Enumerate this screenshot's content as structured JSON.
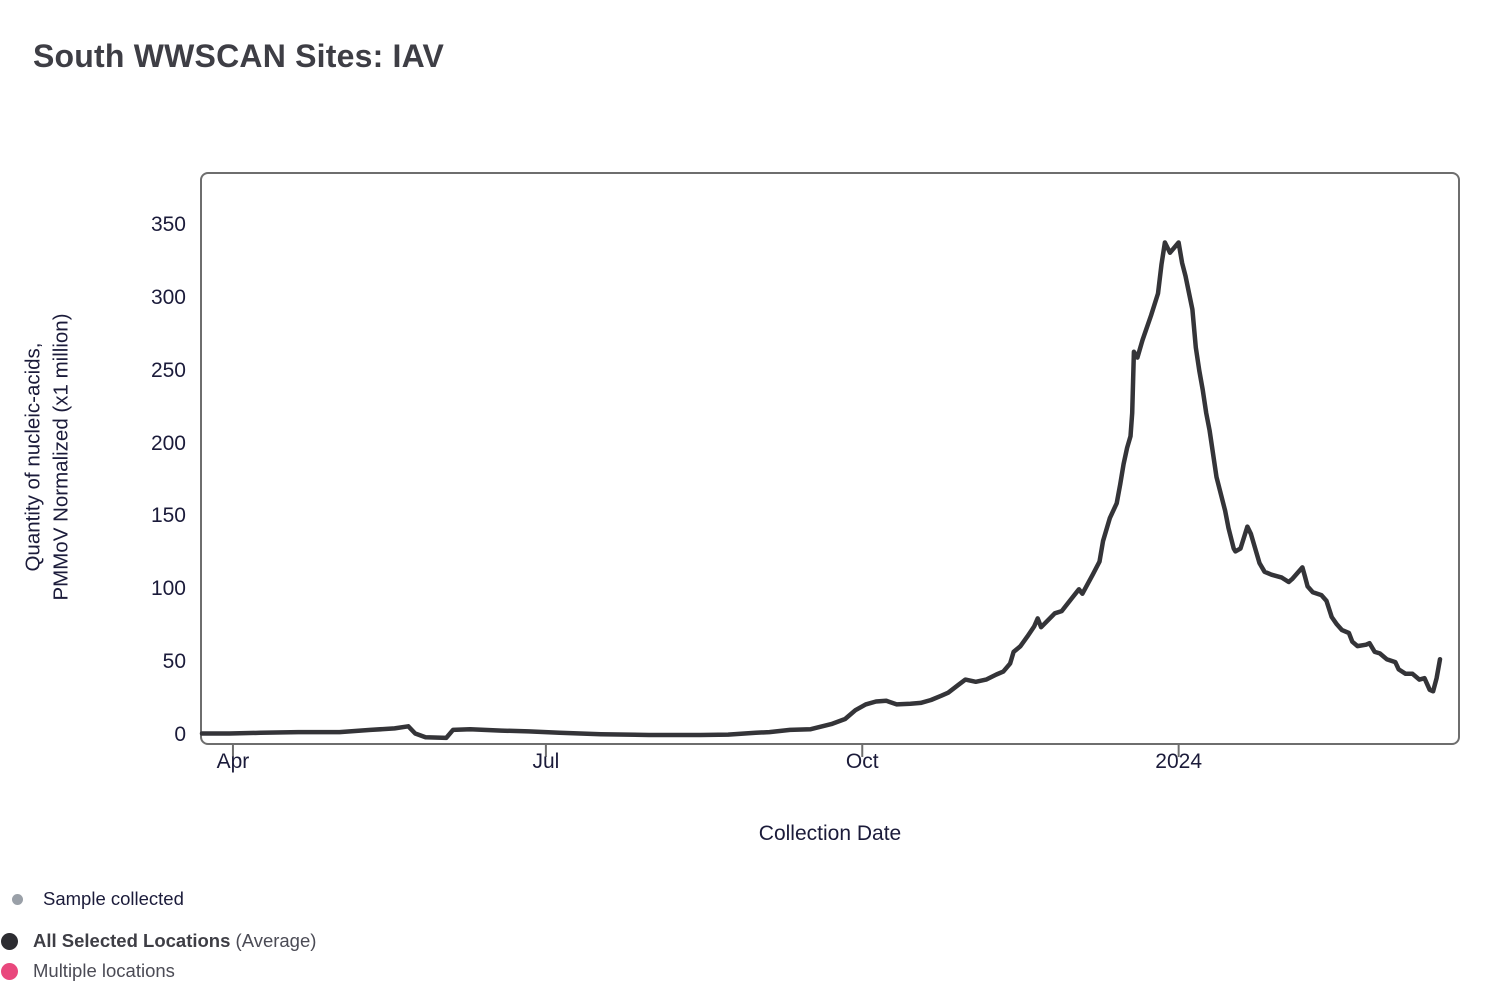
{
  "page": {
    "title": "South WWSCAN Sites: IAV"
  },
  "chart_data": {
    "type": "line",
    "title": "South WWSCAN Sites: IAV",
    "xlabel": "Collection Date",
    "ylabel": "Quantity of nucleic-acids, PMMoV Normalized (x1 million)",
    "ylabel_lines": [
      "Quantity of nucleic-acids,",
      "PMMoV Normalized (x1 million)"
    ],
    "grid": false,
    "legend_position": "bottom-left",
    "x_axis": {
      "description": "x in days along the collection-date axis; ticks mark month starts",
      "domain": [
        0,
        360
      ],
      "ticks": [
        {
          "label": "Apr",
          "x": 9
        },
        {
          "label": "Jul",
          "x": 100
        },
        {
          "label": "Oct",
          "x": 192
        },
        {
          "label": "2024",
          "x": 284
        }
      ]
    },
    "y_axis": {
      "domain": [
        0,
        350
      ],
      "ticks": [
        0,
        50,
        100,
        150,
        200,
        250,
        300,
        350
      ]
    },
    "series": [
      {
        "name": "All Selected Locations (Average)",
        "color": "#343438",
        "points": [
          [
            0,
            1
          ],
          [
            8,
            1
          ],
          [
            17,
            1.5
          ],
          [
            28,
            2
          ],
          [
            40,
            2
          ],
          [
            49,
            3.5
          ],
          [
            56,
            4.5
          ],
          [
            60,
            6
          ],
          [
            62,
            1
          ],
          [
            65,
            -1.5
          ],
          [
            71,
            -2
          ],
          [
            73,
            3.5
          ],
          [
            78,
            4
          ],
          [
            87,
            3
          ],
          [
            95,
            2.5
          ],
          [
            104,
            1.5
          ],
          [
            116,
            0.5
          ],
          [
            130,
            0
          ],
          [
            145,
            0
          ],
          [
            153,
            0.3
          ],
          [
            161,
            1.5
          ],
          [
            165,
            2
          ],
          [
            171,
            3.5
          ],
          [
            177,
            4
          ],
          [
            183,
            7.5
          ],
          [
            187,
            11
          ],
          [
            190,
            17
          ],
          [
            193,
            21
          ],
          [
            196,
            23
          ],
          [
            199,
            23.5
          ],
          [
            202,
            21
          ],
          [
            206,
            21.5
          ],
          [
            209,
            22
          ],
          [
            212,
            24
          ],
          [
            215,
            27
          ],
          [
            217,
            29
          ],
          [
            220,
            34.5
          ],
          [
            222,
            38
          ],
          [
            225,
            36.5
          ],
          [
            228,
            38
          ],
          [
            231,
            41.5
          ],
          [
            233,
            43.5
          ],
          [
            235,
            49
          ],
          [
            236,
            57
          ],
          [
            238,
            61
          ],
          [
            240,
            67.5
          ],
          [
            242,
            74.5
          ],
          [
            243,
            80
          ],
          [
            244,
            74
          ],
          [
            248,
            83.5
          ],
          [
            250,
            85
          ],
          [
            253,
            94
          ],
          [
            255,
            100
          ],
          [
            256,
            97
          ],
          [
            259,
            110
          ],
          [
            261,
            119
          ],
          [
            262,
            133
          ],
          [
            264,
            149
          ],
          [
            266,
            159
          ],
          [
            267,
            172
          ],
          [
            268,
            186
          ],
          [
            269,
            197
          ],
          [
            270,
            205
          ],
          [
            270.5,
            221
          ],
          [
            271,
            263
          ],
          [
            272,
            259
          ],
          [
            273.5,
            271
          ],
          [
            276,
            288
          ],
          [
            278,
            303
          ],
          [
            279,
            323
          ],
          [
            280,
            338
          ],
          [
            281.5,
            331
          ],
          [
            284,
            338
          ],
          [
            285,
            324
          ],
          [
            286,
            315
          ],
          [
            288,
            292
          ],
          [
            289,
            266
          ],
          [
            290,
            250
          ],
          [
            291,
            237
          ],
          [
            292,
            221
          ],
          [
            293,
            209
          ],
          [
            295,
            177
          ],
          [
            297.5,
            154
          ],
          [
            298.5,
            142
          ],
          [
            300,
            128
          ],
          [
            300.5,
            126
          ],
          [
            302,
            128
          ],
          [
            304,
            143
          ],
          [
            305,
            138
          ],
          [
            307.5,
            118
          ],
          [
            309,
            112
          ],
          [
            311,
            110
          ],
          [
            314,
            108
          ],
          [
            316,
            105
          ],
          [
            317,
            107
          ],
          [
            320,
            115
          ],
          [
            320.7,
            109
          ],
          [
            321.5,
            102
          ],
          [
            323,
            98
          ],
          [
            325.5,
            96
          ],
          [
            327,
            92
          ],
          [
            328.5,
            81
          ],
          [
            330,
            76
          ],
          [
            331.5,
            72
          ],
          [
            333.5,
            70
          ],
          [
            334.5,
            64
          ],
          [
            336,
            61
          ],
          [
            338.5,
            62
          ],
          [
            339.5,
            63
          ],
          [
            341,
            57
          ],
          [
            342.5,
            56
          ],
          [
            344.5,
            52
          ],
          [
            347,
            50
          ],
          [
            348,
            45
          ],
          [
            350,
            42
          ],
          [
            352,
            42
          ],
          [
            354,
            38
          ],
          [
            355.5,
            39
          ],
          [
            357,
            31
          ],
          [
            358,
            30
          ],
          [
            359,
            39
          ],
          [
            360,
            52
          ]
        ]
      }
    ]
  },
  "legend": {
    "sample_collected": "Sample collected",
    "all_selected_bold": "All Selected Locations",
    "all_selected_suffix": "(Average)",
    "multiple_locations": "Multiple locations",
    "colors": {
      "sample_dot": "#9aa0a8",
      "all_dot": "#2d2d32",
      "multiple_dot": "#e9487d"
    }
  }
}
